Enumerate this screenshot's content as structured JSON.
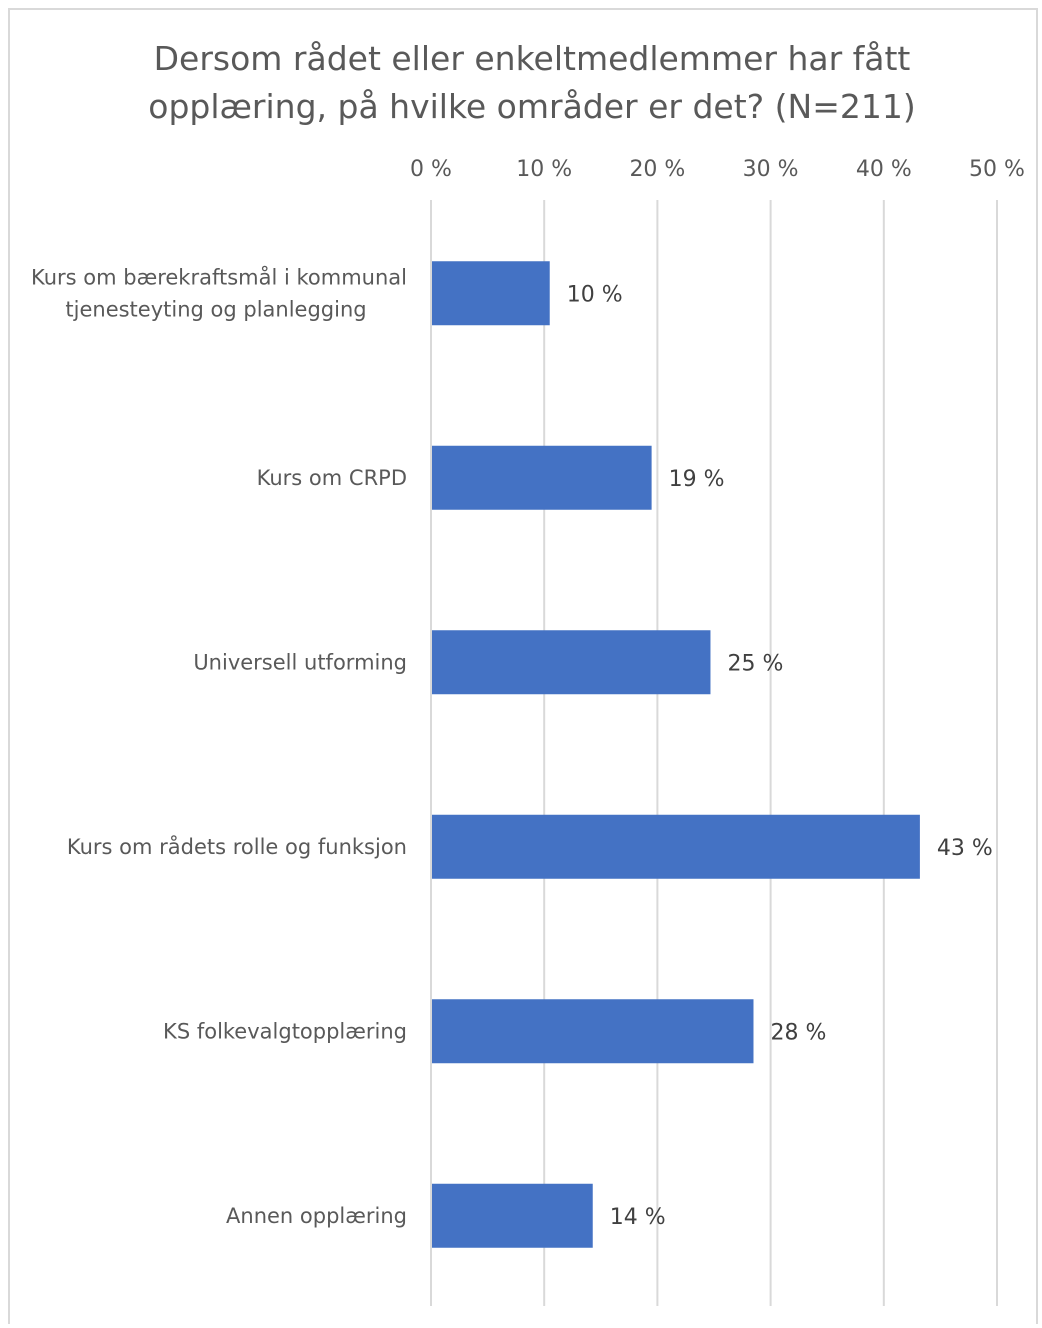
{
  "chart_data": {
    "type": "bar",
    "orientation": "horizontal",
    "title_lines": [
      "Dersom rådet eller enkeltmedlemmer har fått",
      "opplæring, på hvilke områder er det? (N=211)"
    ],
    "categories": [
      [
        "Kurs om bærekraftsmål i kommunal",
        "tjenesteyting og planlegging"
      ],
      [
        "Kurs om CRPD"
      ],
      [
        "Universell utforming"
      ],
      [
        "Kurs om rådets rolle og funksjon"
      ],
      [
        "KS folkevalgtopplæring"
      ],
      [
        "Annen opplæring"
      ]
    ],
    "values": [
      10.4,
      19.4,
      24.6,
      43.1,
      28.4,
      14.2
    ],
    "data_labels": [
      "10 %",
      "19 %",
      "25 %",
      "43 %",
      "28 %",
      "14 %"
    ],
    "xlim": [
      0,
      50
    ],
    "xticks": [
      0,
      10,
      20,
      30,
      40,
      50
    ],
    "xtick_labels": [
      "0 %",
      "10 %",
      "20 %",
      "30 %",
      "40 %",
      "50 %"
    ],
    "axis_position": "top",
    "grid": true,
    "legend": "none",
    "colors": {
      "bar": "#4472C4",
      "grid": "#d9d9d9"
    }
  }
}
